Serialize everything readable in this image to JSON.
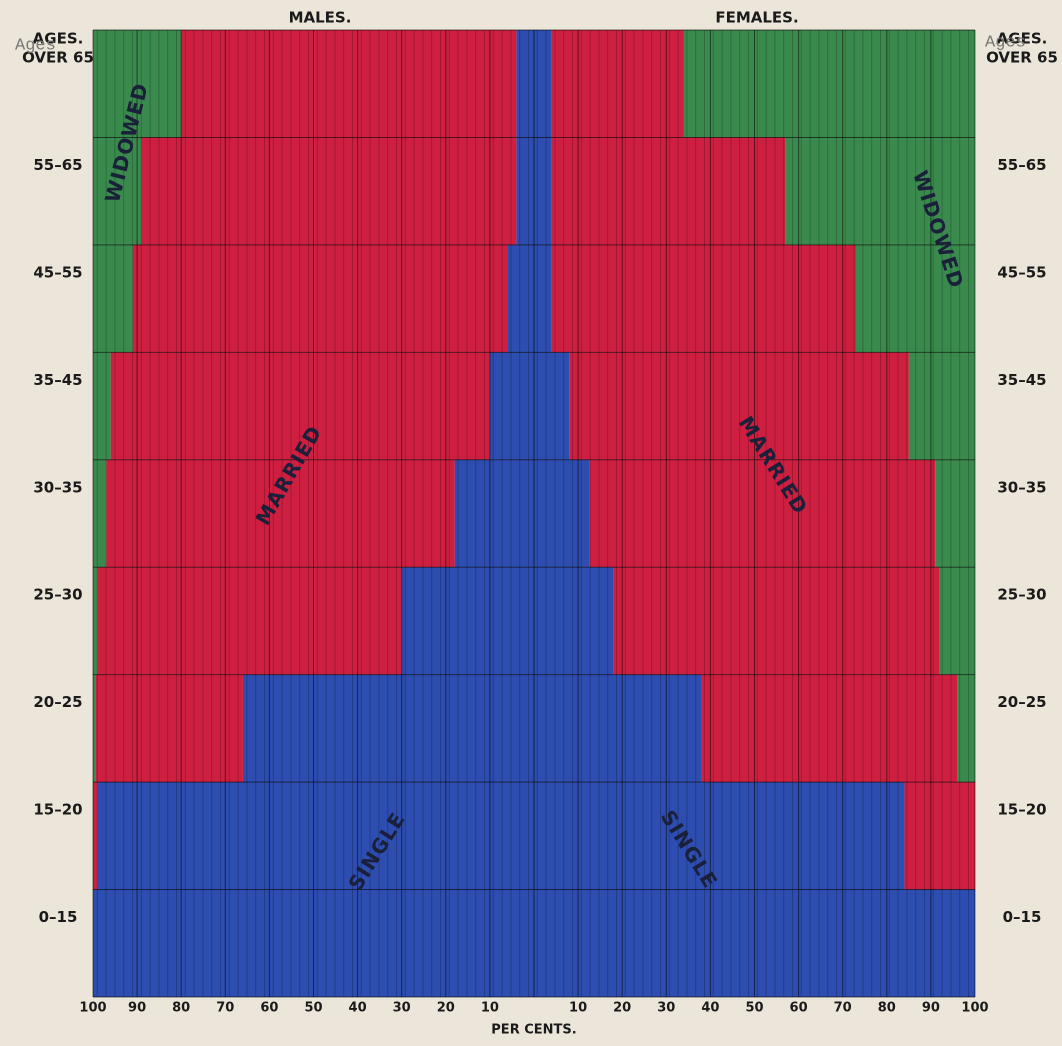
{
  "chart_data": {
    "type": "bar",
    "orientation": "horizontal",
    "stacked": true,
    "mirrored": true,
    "axis_heading": "AGES.",
    "overlay_label": "Ages",
    "xlabel": "PER CENTS.",
    "categories": [
      "OVER 65",
      "55–65",
      "45–55",
      "35–45",
      "30–35",
      "25–30",
      "20–25",
      "15–20",
      "0–15"
    ],
    "grid": true,
    "panels": [
      {
        "title": "MALES.",
        "side": "left",
        "xlim": [
          0,
          100
        ],
        "xticks": [
          100,
          90,
          80,
          70,
          60,
          50,
          40,
          30,
          20,
          10
        ],
        "series": [
          {
            "name": "SINGLE",
            "color": "#2d4db0",
            "values": [
              4,
              4,
              6,
              10,
              18,
              30,
              66,
              99,
              100
            ]
          },
          {
            "name": "MARRIED",
            "color": "#cf1f40",
            "values": [
              76,
              85,
              85,
              86,
              79,
              69,
              33.5,
              1,
              0
            ]
          },
          {
            "name": "WIDOWED",
            "color": "#3a8a4e",
            "values": [
              20,
              11,
              9,
              4,
              3,
              1,
              0.5,
              0,
              0
            ]
          }
        ]
      },
      {
        "title": "FEMALES.",
        "side": "right",
        "xlim": [
          0,
          100
        ],
        "xticks": [
          10,
          20,
          30,
          40,
          50,
          60,
          70,
          80,
          90,
          100
        ],
        "series": [
          {
            "name": "SINGLE",
            "color": "#2d4db0",
            "values": [
              4,
              4,
              4,
              8,
              12.5,
              18,
              38,
              84,
              100
            ]
          },
          {
            "name": "MARRIED",
            "color": "#cf1f40",
            "values": [
              30,
              53,
              69,
              77,
              78.5,
              74,
              58,
              16,
              0
            ]
          },
          {
            "name": "WIDOWED",
            "color": "#3a8a4e",
            "values": [
              66,
              43,
              27,
              15,
              9,
              8,
              4,
              0,
              0
            ]
          }
        ]
      }
    ]
  }
}
